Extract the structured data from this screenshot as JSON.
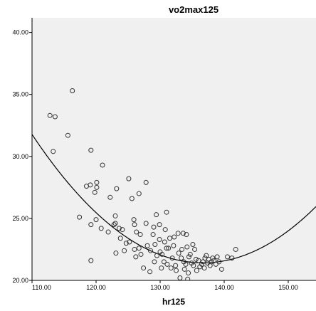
{
  "chart_data": {
    "type": "scatter",
    "title": "vo2max125",
    "xlabel": "hr125",
    "ylabel": "",
    "xlim": [
      110,
      151.5
    ],
    "ylim": [
      20,
      41
    ],
    "x_ticks": [
      110,
      120,
      130,
      140,
      150
    ],
    "y_ticks": [
      20,
      25,
      30,
      35,
      40
    ],
    "x_tick_labels": [
      "110.00",
      "120.00",
      "130.00",
      "140.00",
      "150.00"
    ],
    "y_tick_labels": [
      "20.00",
      "25.00",
      "30.00",
      "35.00",
      "40.00"
    ],
    "grid": false,
    "legend": "none",
    "colors": {
      "plot_background": "#f0f0f0",
      "marker_stroke": "#333333",
      "curve": "#000000",
      "axis": "#000000"
    },
    "fit_line": {
      "type": "quadratic",
      "a": 0.01456,
      "b": -3.98,
      "c": 293.4
    },
    "points": [
      [
        112.8,
        33.3
      ],
      [
        113.6,
        33.2
      ],
      [
        113.3,
        30.4
      ],
      [
        115.6,
        31.7
      ],
      [
        116.3,
        35.3
      ],
      [
        117.4,
        25.1
      ],
      [
        118.5,
        27.6
      ],
      [
        119.2,
        30.5
      ],
      [
        119.1,
        27.7
      ],
      [
        119.2,
        24.5
      ],
      [
        119.2,
        21.6
      ],
      [
        119.8,
        27.1
      ],
      [
        120.1,
        27.9
      ],
      [
        120.1,
        27.5
      ],
      [
        120.0,
        24.9
      ],
      [
        120.8,
        24.2
      ],
      [
        121.0,
        29.3
      ],
      [
        121.9,
        23.9
      ],
      [
        122.2,
        26.7
      ],
      [
        122.8,
        24.5
      ],
      [
        123.0,
        25.2
      ],
      [
        123.0,
        24.6
      ],
      [
        123.1,
        22.2
      ],
      [
        123.2,
        27.4
      ],
      [
        123.6,
        24.2
      ],
      [
        123.8,
        23.4
      ],
      [
        124.1,
        24.1
      ],
      [
        124.4,
        22.4
      ],
      [
        124.7,
        23.0
      ],
      [
        125.1,
        28.2
      ],
      [
        125.2,
        23.1
      ],
      [
        125.6,
        26.6
      ],
      [
        125.9,
        24.9
      ],
      [
        126.0,
        24.5
      ],
      [
        126.0,
        22.5
      ],
      [
        126.2,
        21.9
      ],
      [
        126.3,
        23.9
      ],
      [
        126.7,
        22.6
      ],
      [
        126.9,
        23.7
      ],
      [
        126.7,
        27.0
      ],
      [
        127.0,
        22.1
      ],
      [
        127.4,
        21.0
      ],
      [
        127.8,
        24.6
      ],
      [
        127.8,
        27.9
      ],
      [
        128.0,
        22.8
      ],
      [
        128.4,
        20.7
      ],
      [
        128.5,
        22.4
      ],
      [
        128.9,
        23.7
      ],
      [
        129.0,
        24.3
      ],
      [
        129.4,
        25.3
      ],
      [
        129.1,
        21.5
      ],
      [
        129.2,
        22.9
      ],
      [
        129.5,
        22.0
      ],
      [
        129.9,
        23.3
      ],
      [
        129.9,
        24.5
      ],
      [
        130.0,
        22.3
      ],
      [
        130.2,
        21.0
      ],
      [
        130.3,
        22.1
      ],
      [
        130.6,
        21.5
      ],
      [
        130.7,
        23.1
      ],
      [
        130.8,
        24.1
      ],
      [
        131.0,
        25.5
      ],
      [
        131.0,
        22.6
      ],
      [
        131.1,
        21.3
      ],
      [
        131.3,
        22.6
      ],
      [
        131.5,
        23.4
      ],
      [
        131.7,
        21.0
      ],
      [
        131.9,
        21.8
      ],
      [
        132.1,
        22.8
      ],
      [
        132.2,
        23.5
      ],
      [
        132.4,
        21.2
      ],
      [
        132.5,
        20.8
      ],
      [
        132.8,
        23.8
      ],
      [
        132.9,
        22.2
      ],
      [
        133.1,
        20.2
      ],
      [
        133.3,
        21.8
      ],
      [
        133.4,
        22.5
      ],
      [
        133.6,
        23.8
      ],
      [
        133.7,
        21.5
      ],
      [
        133.8,
        20.9
      ],
      [
        134.0,
        21.3
      ],
      [
        134.1,
        23.7
      ],
      [
        134.2,
        22.7
      ],
      [
        134.3,
        20.1
      ],
      [
        134.4,
        20.6
      ],
      [
        134.5,
        21.9
      ],
      [
        134.7,
        22.1
      ],
      [
        134.9,
        21.4
      ],
      [
        135.1,
        22.9
      ],
      [
        135.2,
        21.2
      ],
      [
        135.4,
        22.5
      ],
      [
        135.6,
        21.7
      ],
      [
        135.7,
        20.8
      ],
      [
        136.0,
        21.6
      ],
      [
        136.2,
        21.1
      ],
      [
        136.5,
        21.3
      ],
      [
        136.7,
        21.5
      ],
      [
        136.9,
        21.0
      ],
      [
        137.0,
        21.8
      ],
      [
        137.2,
        22.0
      ],
      [
        137.4,
        21.4
      ],
      [
        137.6,
        21.7
      ],
      [
        137.8,
        21.2
      ],
      [
        138.0,
        21.5
      ],
      [
        138.2,
        21.8
      ],
      [
        138.4,
        21.6
      ],
      [
        138.7,
        21.3
      ],
      [
        138.9,
        21.9
      ],
      [
        139.2,
        21.5
      ],
      [
        139.6,
        20.9
      ],
      [
        140.5,
        21.9
      ],
      [
        141.2,
        21.8
      ],
      [
        141.8,
        22.5
      ]
    ]
  }
}
